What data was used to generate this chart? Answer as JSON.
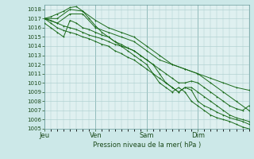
{
  "title": "Pression niveau de la mer( hPa )",
  "background_color": "#cce8e8",
  "plot_bg_color": "#dff0f0",
  "grid_color": "#a8cccc",
  "line_color": "#1a6b1a",
  "ylim": [
    1005,
    1018.5
  ],
  "yticks": [
    1005,
    1006,
    1007,
    1008,
    1009,
    1010,
    1011,
    1012,
    1013,
    1014,
    1015,
    1016,
    1017,
    1018
  ],
  "day_labels": [
    "Jeu",
    "Ven",
    "Sam",
    "Dim"
  ],
  "day_positions": [
    0,
    24,
    48,
    72
  ],
  "xlim": [
    0,
    96
  ],
  "lines": [
    [
      0,
      1017.0,
      3,
      1017.2,
      6,
      1017.5,
      9,
      1017.8,
      12,
      1018.2,
      15,
      1018.3,
      18,
      1017.8,
      21,
      1017.0,
      24,
      1016.2,
      27,
      1015.5,
      30,
      1015.0,
      33,
      1014.5,
      36,
      1014.0,
      39,
      1013.5,
      42,
      1013.0,
      45,
      1012.5,
      48,
      1012.0,
      51,
      1011.0,
      54,
      1010.0,
      57,
      1009.5,
      60,
      1009.0,
      63,
      1009.5,
      66,
      1009.0,
      69,
      1008.0,
      72,
      1007.5,
      75,
      1007.0,
      78,
      1006.5,
      81,
      1006.2,
      84,
      1006.0,
      87,
      1005.8,
      90,
      1005.5,
      93,
      1005.2,
      96,
      1005.0
    ],
    [
      0,
      1017.0,
      3,
      1016.8,
      6,
      1016.5,
      9,
      1016.2,
      12,
      1016.0,
      15,
      1015.8,
      18,
      1015.5,
      21,
      1015.2,
      24,
      1015.0,
      27,
      1014.8,
      30,
      1014.5,
      33,
      1014.2,
      36,
      1014.0,
      39,
      1013.8,
      42,
      1013.5,
      45,
      1013.0,
      48,
      1012.5,
      51,
      1012.0,
      54,
      1011.0,
      57,
      1010.0,
      60,
      1009.5,
      63,
      1009.0,
      66,
      1009.5,
      69,
      1009.2,
      72,
      1008.0,
      75,
      1007.5,
      78,
      1007.2,
      81,
      1006.8,
      84,
      1006.5,
      87,
      1006.2,
      90,
      1006.0,
      93,
      1005.8,
      96,
      1005.5
    ],
    [
      0,
      1017.0,
      3,
      1016.5,
      6,
      1016.0,
      9,
      1015.7,
      12,
      1015.5,
      15,
      1015.3,
      18,
      1015.0,
      21,
      1014.8,
      24,
      1014.5,
      27,
      1014.2,
      30,
      1014.0,
      33,
      1013.5,
      36,
      1013.2,
      39,
      1012.8,
      42,
      1012.5,
      45,
      1012.0,
      48,
      1011.5,
      51,
      1011.0,
      54,
      1010.5,
      57,
      1010.0,
      60,
      1009.5,
      63,
      1009.0,
      66,
      1009.5,
      69,
      1009.5,
      72,
      1009.0,
      75,
      1008.5,
      78,
      1008.0,
      81,
      1007.5,
      84,
      1007.0,
      87,
      1006.5,
      90,
      1006.2,
      93,
      1006.0,
      96,
      1005.8
    ],
    [
      0,
      1017.0,
      6,
      1016.5,
      12,
      1017.5,
      18,
      1017.5,
      24,
      1016.0,
      30,
      1015.5,
      36,
      1015.0,
      42,
      1014.5,
      48,
      1013.5,
      54,
      1012.5,
      60,
      1012.0,
      66,
      1011.5,
      72,
      1011.0,
      78,
      1010.0,
      84,
      1009.0,
      90,
      1008.0,
      96,
      1007.0
    ],
    [
      0,
      1017.0,
      6,
      1017.0,
      12,
      1018.0,
      18,
      1017.8,
      24,
      1016.8,
      30,
      1016.0,
      36,
      1015.5,
      42,
      1015.0,
      48,
      1014.0,
      54,
      1013.0,
      60,
      1012.0,
      66,
      1011.5,
      72,
      1011.0,
      78,
      1010.5,
      84,
      1010.0,
      90,
      1009.5,
      96,
      1009.2
    ],
    [
      0,
      1016.5,
      3,
      1016.0,
      6,
      1015.5,
      9,
      1015.0,
      12,
      1016.8,
      15,
      1016.5,
      18,
      1016.0,
      21,
      1015.8,
      24,
      1015.5,
      27,
      1015.2,
      30,
      1015.0,
      33,
      1014.5,
      36,
      1014.2,
      39,
      1013.8,
      42,
      1013.5,
      45,
      1013.0,
      48,
      1012.5,
      51,
      1012.0,
      54,
      1011.5,
      57,
      1011.0,
      60,
      1010.5,
      63,
      1010.0,
      66,
      1010.0,
      69,
      1010.2,
      72,
      1010.0,
      75,
      1009.5,
      78,
      1009.0,
      81,
      1008.5,
      84,
      1008.0,
      87,
      1007.5,
      90,
      1007.2,
      93,
      1007.0,
      96,
      1007.5
    ]
  ]
}
